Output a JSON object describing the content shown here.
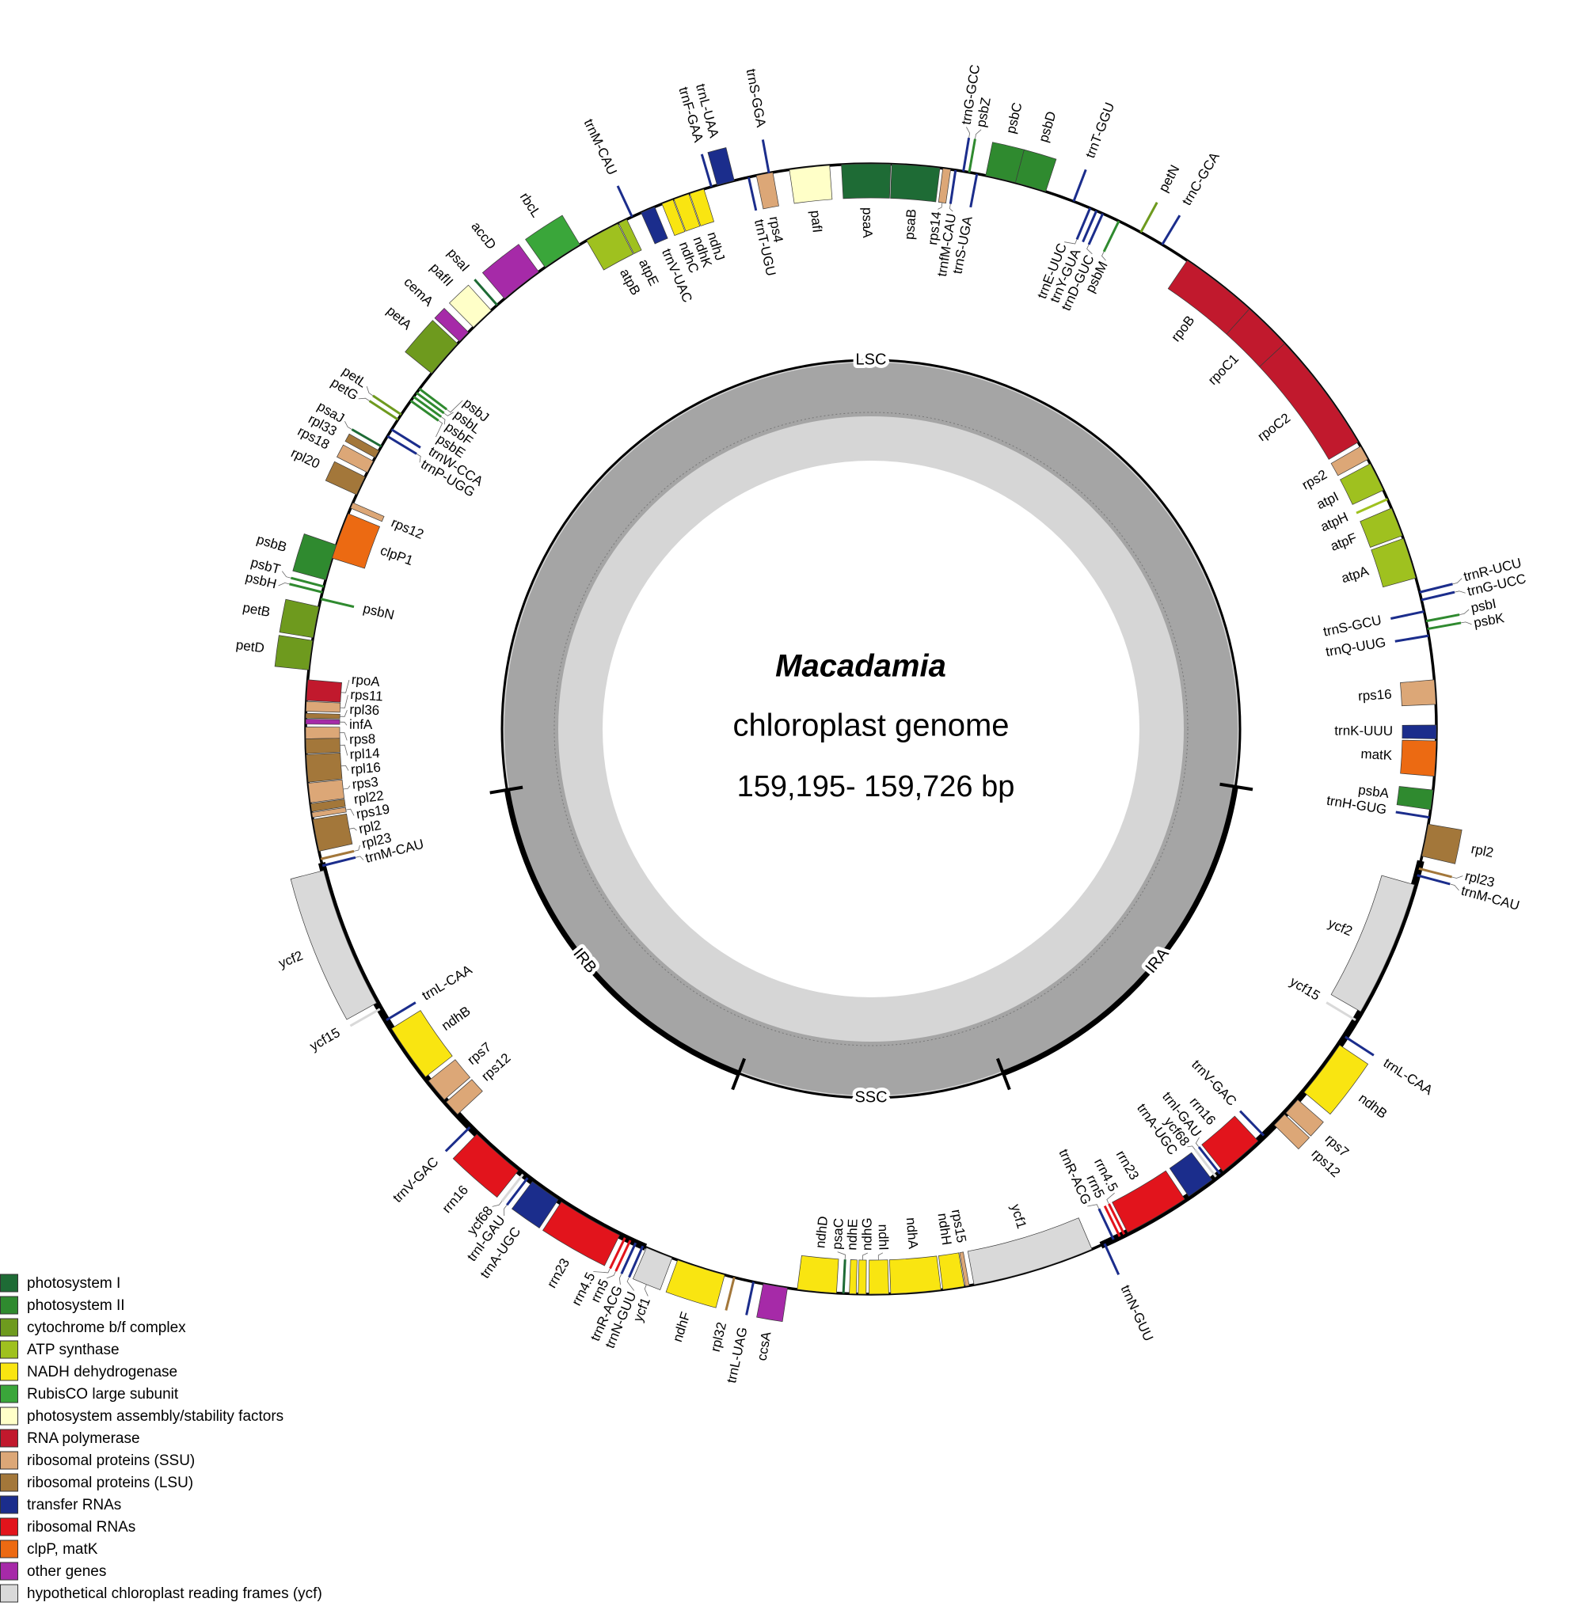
{
  "center": {
    "genus": "Macadamia",
    "subtitle": "chloroplast genome",
    "size": "159,195- 159,726 bp"
  },
  "regions": [
    "LSC",
    "IRA",
    "SSC",
    "IRB"
  ],
  "groups": [
    {
      "name": "photosystem I",
      "color": "#1e6b35",
      "genes": [
        "psaA",
        "psaB",
        "psaI",
        "psaJ",
        "psaC"
      ]
    },
    {
      "name": "photosystem II",
      "color": "#2f8a2f",
      "genes": [
        "psbZ",
        "psbC",
        "psbD",
        "psbM",
        "psbI",
        "psbK",
        "psbA",
        "psbE",
        "psbF",
        "psbL",
        "psbJ",
        "psbN",
        "psbH",
        "psbT",
        "psbB"
      ]
    },
    {
      "name": "cytochrome b/f complex",
      "color": "#6e9a1e",
      "genes": [
        "petN",
        "petD",
        "petB",
        "petG",
        "petL",
        "petA"
      ]
    },
    {
      "name": "ATP synthase",
      "color": "#9fc11f",
      "genes": [
        "atpI",
        "atpH",
        "atpF",
        "atpA",
        "atpB",
        "atpE"
      ]
    },
    {
      "name": "NADH dehydrogenase",
      "color": "#f9e511",
      "genes": [
        "ndhB",
        "ndhH",
        "ndhA",
        "ndhI",
        "ndhG",
        "ndhE",
        "ndhD",
        "ndhF",
        "ndhB",
        "ndhC",
        "ndhK",
        "ndhJ"
      ]
    },
    {
      "name": "RubisCO large subunit",
      "color": "#3aa63a",
      "genes": [
        "rbcL"
      ]
    },
    {
      "name": "photosystem assembly/stability factors",
      "color": "#ffffc8",
      "genes": [
        "pafII",
        "pafI"
      ]
    },
    {
      "name": "RNA polymerase",
      "color": "#c1192d",
      "genes": [
        "rpoB",
        "rpoC1",
        "rpoC2",
        "rpoA"
      ]
    },
    {
      "name": "ribosomal proteins (SSU)",
      "color": "#dca777",
      "genes": [
        "rps14",
        "rps2",
        "rps16",
        "rps7",
        "rps12",
        "rps15",
        "rps12",
        "rps7",
        "rps19",
        "rps3",
        "rps8",
        "rps11",
        "rps12",
        "rps18",
        "rps4"
      ]
    },
    {
      "name": "ribosomal proteins (LSU)",
      "color": "#a3773a",
      "genes": [
        "rpl2",
        "rpl23",
        "rpl32",
        "rpl23",
        "rpl2",
        "rpl22",
        "rpl16",
        "rpl14",
        "rpl36",
        "rpl20",
        "rpl33"
      ]
    },
    {
      "name": "transfer RNAs",
      "color": "#1b2d8c",
      "genes": [
        "trnfM-CAU",
        "trnG-GCC",
        "trnS-UGA",
        "trnT-GGU",
        "trnE-UUC",
        "trnY-GUA",
        "trnD-GUC",
        "trnC-GCA",
        "trnR-UCU",
        "trnG-UCC",
        "trnS-GCU",
        "trnQ-UUG",
        "trnK-UUU",
        "trnH-GUG",
        "trnM-CAU",
        "trnL-CAA",
        "trnV-GAC",
        "trnI-GAU",
        "trnA-UGC",
        "trnR-ACG",
        "trnN-GUU",
        "trnL-UAG",
        "trnN-GUU",
        "trnR-ACG",
        "trnA-UGC",
        "trnI-GAU",
        "trnV-GAC",
        "trnL-CAA",
        "trnM-CAU",
        "trnP-UGG",
        "trnW-CCA",
        "trnM-CAU",
        "trnV-UAC",
        "trnF-GAA",
        "trnL-UAA",
        "trnT-UGU",
        "trnS-GGA"
      ]
    },
    {
      "name": "ribosomal RNAs",
      "color": "#e2141c",
      "genes": [
        "rrn16",
        "rrn23",
        "rrn4.5",
        "rrn5",
        "rrn5",
        "rrn4.5",
        "rrn23",
        "rrn16"
      ]
    },
    {
      "name": "clpP, matK",
      "color": "#ec6a12",
      "genes": [
        "matK",
        "clpP1"
      ]
    },
    {
      "name": "other genes",
      "color": "#a62aa8",
      "genes": [
        "infA",
        "accD",
        "cemA",
        "ccsA"
      ]
    },
    {
      "name": "hypothetical chloroplast reading frames (ycf)",
      "color": "#d9d9d9",
      "genes": [
        "ycf2",
        "ycf15",
        "ycf68",
        "ycf1",
        "ycf1",
        "ycf68",
        "ycf15",
        "ycf2"
      ]
    }
  ]
}
